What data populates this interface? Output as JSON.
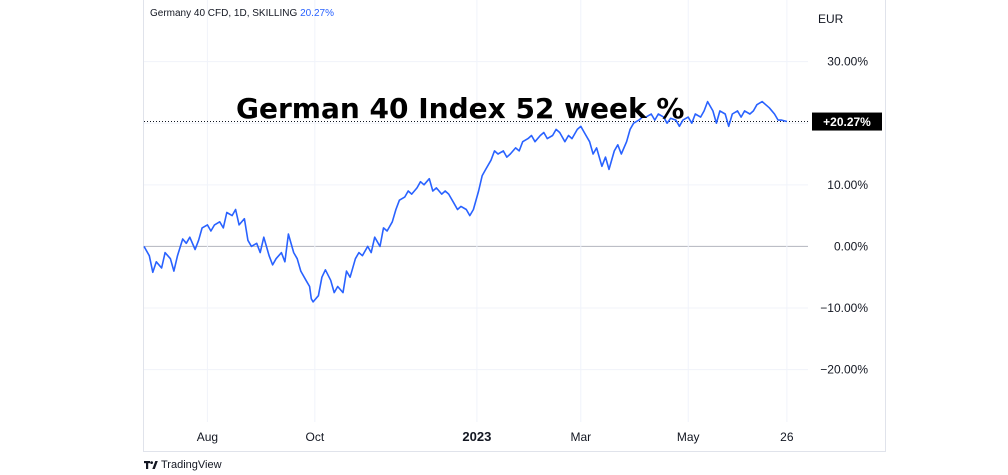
{
  "header": {
    "symbol_text": "Germany 40 CFD, 1D, SKILLING",
    "change_text": "20.27%"
  },
  "footer": {
    "brand": "TradingView",
    "logo_icon": "tradingview-logo-icon"
  },
  "colors": {
    "line": "#2962ff",
    "grid": "#f0f3fa",
    "zero": "#b2b5be",
    "badge_bg": "#000000",
    "badge_fg": "#ffffff"
  },
  "chart_data": {
    "type": "line",
    "title": "German 40 Index 52 week %",
    "currency_label": "EUR",
    "y_unit": "%",
    "ylim": [
      -28.5,
      40
    ],
    "y_ticks": [
      {
        "value": 30,
        "label": "30.00%"
      },
      {
        "value": 20,
        "label": ""
      },
      {
        "value": 10,
        "label": "10.00%"
      },
      {
        "value": 0,
        "label": "0.00%"
      },
      {
        "value": -10,
        "label": "−10.00%"
      },
      {
        "value": -20,
        "label": "−20.00%"
      }
    ],
    "x_ticks": [
      {
        "date": "2022-08-01",
        "label": "Aug"
      },
      {
        "date": "2022-10-01",
        "label": "Oct"
      },
      {
        "date": "2023-01-01",
        "label": "2023"
      },
      {
        "date": "2023-03-01",
        "label": "Mar"
      },
      {
        "date": "2023-05-01",
        "label": "May"
      },
      {
        "date": "2023-06-26",
        "label": "26"
      }
    ],
    "xlim": [
      "2022-06-26",
      "2023-07-08"
    ],
    "last_value": 20.27,
    "last_value_label": "+20.27%",
    "grid": true,
    "series": [
      {
        "points": [
          [
            "2022-06-26",
            0.0
          ],
          [
            "2022-06-29",
            -1.5
          ],
          [
            "2022-07-01",
            -4.2
          ],
          [
            "2022-07-03",
            -2.5
          ],
          [
            "2022-07-06",
            -3.5
          ],
          [
            "2022-07-08",
            -1.0
          ],
          [
            "2022-07-11",
            -2.0
          ],
          [
            "2022-07-13",
            -4.0
          ],
          [
            "2022-07-15",
            -1.5
          ],
          [
            "2022-07-18",
            1.2
          ],
          [
            "2022-07-20",
            0.5
          ],
          [
            "2022-07-22",
            1.5
          ],
          [
            "2022-07-25",
            -0.5
          ],
          [
            "2022-07-27",
            1.0
          ],
          [
            "2022-07-29",
            3.0
          ],
          [
            "2022-08-01",
            3.5
          ],
          [
            "2022-08-03",
            2.5
          ],
          [
            "2022-08-05",
            3.5
          ],
          [
            "2022-08-08",
            4.0
          ],
          [
            "2022-08-10",
            3.0
          ],
          [
            "2022-08-12",
            5.5
          ],
          [
            "2022-08-15",
            5.0
          ],
          [
            "2022-08-17",
            6.0
          ],
          [
            "2022-08-19",
            3.5
          ],
          [
            "2022-08-22",
            4.5
          ],
          [
            "2022-08-24",
            1.0
          ],
          [
            "2022-08-26",
            0.0
          ],
          [
            "2022-08-29",
            0.5
          ],
          [
            "2022-08-31",
            -1.0
          ],
          [
            "2022-09-02",
            1.5
          ],
          [
            "2022-09-05",
            -1.5
          ],
          [
            "2022-09-07",
            -3.0
          ],
          [
            "2022-09-09",
            -2.0
          ],
          [
            "2022-09-12",
            -1.0
          ],
          [
            "2022-09-14",
            -2.5
          ],
          [
            "2022-09-16",
            2.0
          ],
          [
            "2022-09-19",
            -1.0
          ],
          [
            "2022-09-21",
            -2.0
          ],
          [
            "2022-09-23",
            -4.0
          ],
          [
            "2022-09-26",
            -5.5
          ],
          [
            "2022-09-28",
            -6.5
          ],
          [
            "2022-09-29",
            -8.5
          ],
          [
            "2022-09-30",
            -9.0
          ],
          [
            "2022-10-03",
            -8.0
          ],
          [
            "2022-10-05",
            -5.0
          ],
          [
            "2022-10-07",
            -3.8
          ],
          [
            "2022-10-10",
            -5.5
          ],
          [
            "2022-10-12",
            -7.5
          ],
          [
            "2022-10-14",
            -6.5
          ],
          [
            "2022-10-17",
            -7.5
          ],
          [
            "2022-10-19",
            -4.0
          ],
          [
            "2022-10-21",
            -5.0
          ],
          [
            "2022-10-24",
            -2.0
          ],
          [
            "2022-10-26",
            -1.0
          ],
          [
            "2022-10-28",
            -1.5
          ],
          [
            "2022-10-31",
            0.0
          ],
          [
            "2022-11-02",
            -1.0
          ],
          [
            "2022-11-04",
            1.5
          ],
          [
            "2022-11-07",
            0.0
          ],
          [
            "2022-11-09",
            3.0
          ],
          [
            "2022-11-11",
            2.5
          ],
          [
            "2022-11-14",
            4.0
          ],
          [
            "2022-11-16",
            6.0
          ],
          [
            "2022-11-18",
            7.5
          ],
          [
            "2022-11-21",
            8.0
          ],
          [
            "2022-11-23",
            9.0
          ],
          [
            "2022-11-25",
            8.5
          ],
          [
            "2022-11-28",
            9.5
          ],
          [
            "2022-11-30",
            10.5
          ],
          [
            "2022-12-02",
            10.0
          ],
          [
            "2022-12-05",
            11.0
          ],
          [
            "2022-12-07",
            9.0
          ],
          [
            "2022-12-09",
            9.5
          ],
          [
            "2022-12-12",
            8.5
          ],
          [
            "2022-12-14",
            9.0
          ],
          [
            "2022-12-16",
            8.5
          ],
          [
            "2022-12-19",
            7.0
          ],
          [
            "2022-12-21",
            6.0
          ],
          [
            "2022-12-23",
            6.5
          ],
          [
            "2022-12-26",
            6.0
          ],
          [
            "2022-12-28",
            5.0
          ],
          [
            "2022-12-30",
            6.0
          ],
          [
            "2023-01-02",
            9.0
          ],
          [
            "2023-01-04",
            11.5
          ],
          [
            "2023-01-06",
            12.5
          ],
          [
            "2023-01-09",
            14.0
          ],
          [
            "2023-01-11",
            15.5
          ],
          [
            "2023-01-13",
            15.0
          ],
          [
            "2023-01-16",
            15.5
          ],
          [
            "2023-01-18",
            14.5
          ],
          [
            "2023-01-20",
            15.0
          ],
          [
            "2023-01-23",
            16.0
          ],
          [
            "2023-01-25",
            15.5
          ],
          [
            "2023-01-27",
            17.0
          ],
          [
            "2023-01-30",
            17.5
          ],
          [
            "2023-02-01",
            18.0
          ],
          [
            "2023-02-03",
            17.0
          ],
          [
            "2023-02-06",
            18.0
          ],
          [
            "2023-02-08",
            18.5
          ],
          [
            "2023-02-10",
            17.5
          ],
          [
            "2023-02-13",
            18.0
          ],
          [
            "2023-02-15",
            19.0
          ],
          [
            "2023-02-17",
            18.5
          ],
          [
            "2023-02-20",
            17.0
          ],
          [
            "2023-02-22",
            18.0
          ],
          [
            "2023-02-24",
            17.5
          ],
          [
            "2023-02-27",
            19.0
          ],
          [
            "2023-03-01",
            19.5
          ],
          [
            "2023-03-03",
            18.5
          ],
          [
            "2023-03-06",
            17.0
          ],
          [
            "2023-03-08",
            15.0
          ],
          [
            "2023-03-10",
            16.0
          ],
          [
            "2023-03-13",
            13.0
          ],
          [
            "2023-03-15",
            14.5
          ],
          [
            "2023-03-17",
            12.5
          ],
          [
            "2023-03-20",
            15.5
          ],
          [
            "2023-03-22",
            16.5
          ],
          [
            "2023-03-24",
            15.0
          ],
          [
            "2023-03-27",
            17.0
          ],
          [
            "2023-03-29",
            19.0
          ],
          [
            "2023-03-31",
            20.0
          ],
          [
            "2023-04-03",
            20.5
          ],
          [
            "2023-04-05",
            21.0
          ],
          [
            "2023-04-07",
            21.0
          ],
          [
            "2023-04-10",
            21.5
          ],
          [
            "2023-04-12",
            20.5
          ],
          [
            "2023-04-14",
            21.5
          ],
          [
            "2023-04-17",
            21.0
          ],
          [
            "2023-04-19",
            20.0
          ],
          [
            "2023-04-21",
            20.8
          ],
          [
            "2023-04-24",
            20.5
          ],
          [
            "2023-04-26",
            19.5
          ],
          [
            "2023-04-28",
            20.5
          ],
          [
            "2023-05-01",
            21.0
          ],
          [
            "2023-05-03",
            20.0
          ],
          [
            "2023-05-05",
            21.5
          ],
          [
            "2023-05-08",
            21.0
          ],
          [
            "2023-05-10",
            22.0
          ],
          [
            "2023-05-12",
            23.5
          ],
          [
            "2023-05-15",
            22.0
          ],
          [
            "2023-05-17",
            20.0
          ],
          [
            "2023-05-19",
            22.0
          ],
          [
            "2023-05-22",
            21.5
          ],
          [
            "2023-05-24",
            19.5
          ],
          [
            "2023-05-26",
            21.5
          ],
          [
            "2023-05-29",
            22.0
          ],
          [
            "2023-05-31",
            21.0
          ],
          [
            "2023-06-02",
            22.0
          ],
          [
            "2023-06-05",
            21.5
          ],
          [
            "2023-06-07",
            22.0
          ],
          [
            "2023-06-09",
            23.0
          ],
          [
            "2023-06-12",
            23.5
          ],
          [
            "2023-06-14",
            23.0
          ],
          [
            "2023-06-16",
            22.5
          ],
          [
            "2023-06-19",
            21.5
          ],
          [
            "2023-06-21",
            20.5
          ],
          [
            "2023-06-23",
            20.5
          ],
          [
            "2023-06-26",
            20.27
          ]
        ]
      }
    ]
  }
}
